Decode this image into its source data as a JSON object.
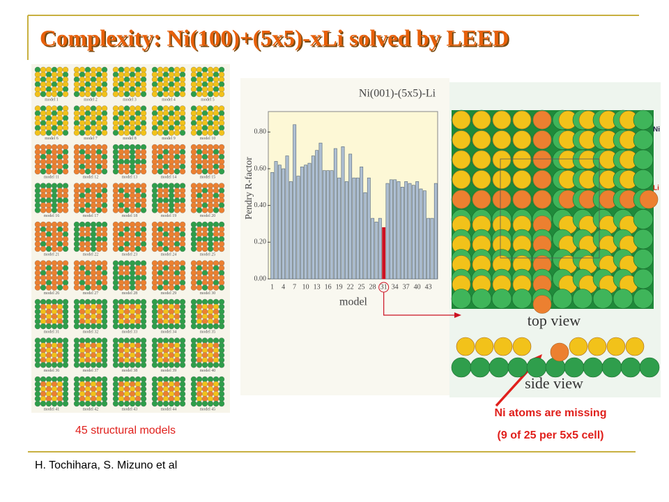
{
  "title": "Complexity:   Ni(100)+(5x5)-xLi solved by LEED",
  "models_caption": "45 structural models",
  "models": [
    "model 1",
    "model 2",
    "model 3",
    "model 4",
    "model 5",
    "model 6",
    "model 7",
    "model 8",
    "model 9",
    "model 10",
    "model 11",
    "model 12",
    "model 13",
    "model 14",
    "model 15",
    "model 16",
    "model 17",
    "model 18",
    "model 19",
    "model 20",
    "model 21",
    "model 22",
    "model 23",
    "model 24",
    "model 25",
    "model 26",
    "model 27",
    "model 28",
    "model 29",
    "model 30",
    "model 31",
    "model 32",
    "model 33",
    "model 34",
    "model 35",
    "model 36",
    "model 37",
    "model 38",
    "model 39",
    "model 40",
    "model 41",
    "model 42",
    "model 43",
    "model 44",
    "model 45"
  ],
  "chart_data": {
    "type": "bar",
    "title": "Ni(001)-(5x5)-Li",
    "x_label": "model",
    "y_label": "Pendry R-factor",
    "categories": [
      1,
      null,
      null,
      4,
      null,
      null,
      7,
      null,
      null,
      10,
      null,
      null,
      13,
      null,
      null,
      16,
      null,
      null,
      19,
      null,
      null,
      22,
      null,
      null,
      25,
      null,
      null,
      28,
      null,
      null,
      31,
      null,
      null,
      34,
      null,
      null,
      37,
      null,
      null,
      40,
      null,
      null,
      43,
      null,
      null
    ],
    "values": [
      0.58,
      0.64,
      0.62,
      0.6,
      0.67,
      0.53,
      0.84,
      0.56,
      0.61,
      0.62,
      0.63,
      0.67,
      0.7,
      0.74,
      0.59,
      0.59,
      0.59,
      0.71,
      0.55,
      0.72,
      0.53,
      0.68,
      0.55,
      0.55,
      0.61,
      0.47,
      0.55,
      0.33,
      0.31,
      0.33,
      0.28,
      0.52,
      0.54,
      0.54,
      0.53,
      0.5,
      0.53,
      0.52,
      0.51,
      0.53,
      0.49,
      0.48,
      0.33,
      0.33,
      0.52
    ],
    "color": "#aebfd2",
    "highlight": {
      "category": 31,
      "color": "#cc1122"
    },
    "ylim": [
      0,
      0.9
    ],
    "yticks": [
      {
        "value": 0,
        "label": "0.00"
      },
      {
        "value": 0.2,
        "label": "0.20"
      },
      {
        "value": 0.4,
        "label": "0.40"
      },
      {
        "value": 0.6,
        "label": "0.60"
      },
      {
        "value": 0.8,
        "label": "0.80"
      }
    ]
  },
  "figure": {
    "ni_label": "Ni",
    "li_label": "Li",
    "top_view": "top view",
    "side_view": "side view"
  },
  "callout": {
    "line1": "Ni atoms are missing",
    "line2": "(9 of 25 per 5x5 cell)"
  },
  "footer": "H. Tochihara, S. Mizuno et al"
}
